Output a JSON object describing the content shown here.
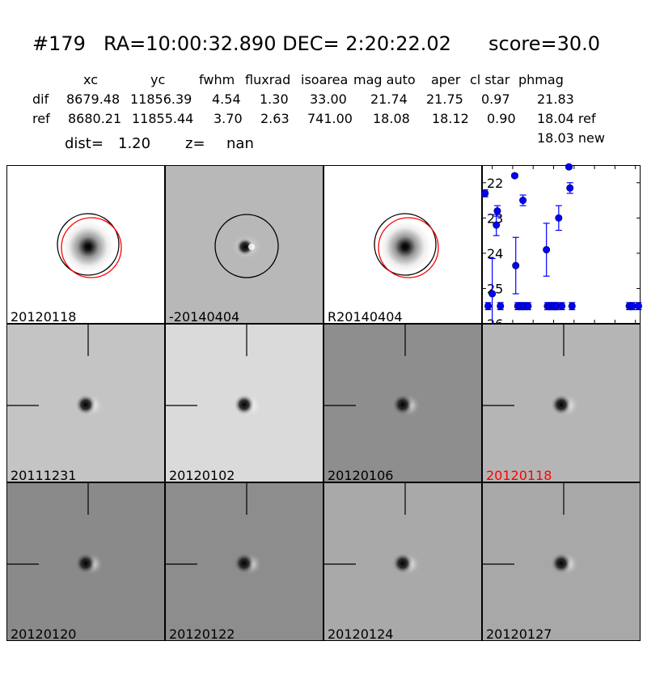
{
  "header": {
    "id": "#179",
    "coords": "RA=10:00:32.890 DEC= 2:20:22.02",
    "score": "score=30.0"
  },
  "table": {
    "columns": [
      "xc",
      "yc",
      "fwhm",
      "fluxrad",
      "isoarea",
      "mag auto",
      "aper",
      "cl star",
      "phmag"
    ],
    "rows": [
      {
        "label": "dif",
        "values": [
          "8679.48",
          "11856.39",
          "4.54",
          "1.30",
          "33.00",
          "21.74",
          "21.75",
          "0.97",
          "21.83"
        ]
      },
      {
        "label": "ref",
        "values": [
          "8680.21",
          "11855.44",
          "3.70",
          "2.63",
          "741.00",
          "18.08",
          "18.12",
          "0.90",
          "18.04 ref"
        ]
      }
    ],
    "extra_phmag": "18.03 new",
    "dist_label": "dist=",
    "dist_value": "1.20",
    "z_label": "z=",
    "z_value": "nan"
  },
  "panels": {
    "top": [
      {
        "label": "20120118",
        "bg": "#ffffff"
      },
      {
        "label": "-20140404",
        "bg": "#b8b8b8"
      },
      {
        "label": "R20140404",
        "bg": "#ffffff"
      }
    ],
    "grid": [
      {
        "label": "20111231",
        "bg": "#c4c4c4",
        "highlight": false
      },
      {
        "label": "20120102",
        "bg": "#dadada",
        "highlight": false
      },
      {
        "label": "20120106",
        "bg": "#8e8e8e",
        "highlight": false
      },
      {
        "label": "20120118",
        "bg": "#b5b5b5",
        "highlight": true
      },
      {
        "label": "20120120",
        "bg": "#8a8a8a",
        "highlight": false
      },
      {
        "label": "20120122",
        "bg": "#8d8d8d",
        "highlight": false
      },
      {
        "label": "20120124",
        "bg": "#a9a9a9",
        "highlight": false
      },
      {
        "label": "20120127",
        "bg": "#a8a8a8",
        "highlight": false
      }
    ],
    "highlight_color": "#ff0000"
  },
  "chart_data": {
    "type": "scatter",
    "xlim": [
      -30,
      125
    ],
    "ylim": [
      26,
      21.5
    ],
    "y_inverted": true,
    "xticks": [
      -20,
      0,
      20,
      40,
      60,
      80,
      100,
      120
    ],
    "yticks": [
      22,
      23,
      24,
      25,
      26
    ],
    "marker_color": "#0000ff",
    "points": [
      {
        "x": -27,
        "y": 22.3,
        "err": 0.1
      },
      {
        "x": -24,
        "y": 25.5,
        "err": 0.1
      },
      {
        "x": -20,
        "y": 25.15,
        "err": 1.0
      },
      {
        "x": -16,
        "y": 23.2,
        "err": 0.3
      },
      {
        "x": -15,
        "y": 22.8,
        "err": 0.15
      },
      {
        "x": -12,
        "y": 25.5,
        "err": 0.1
      },
      {
        "x": 2,
        "y": 21.8,
        "err": 0.05
      },
      {
        "x": 3,
        "y": 24.35,
        "err": 0.8
      },
      {
        "x": 5,
        "y": 25.5,
        "err": 0.1
      },
      {
        "x": 8,
        "y": 25.5,
        "err": 0.1
      },
      {
        "x": 10,
        "y": 22.5,
        "err": 0.15
      },
      {
        "x": 11,
        "y": 25.5,
        "err": 0.1
      },
      {
        "x": 15,
        "y": 25.5,
        "err": 0.1
      },
      {
        "x": 33,
        "y": 23.9,
        "err": 0.75
      },
      {
        "x": 34,
        "y": 25.5,
        "err": 0.1
      },
      {
        "x": 36,
        "y": 25.5,
        "err": 0.1
      },
      {
        "x": 39,
        "y": 25.5,
        "err": 0.1
      },
      {
        "x": 41,
        "y": 25.5,
        "err": 0.1
      },
      {
        "x": 43,
        "y": 25.5,
        "err": 0.1
      },
      {
        "x": 45,
        "y": 23.0,
        "err": 0.35
      },
      {
        "x": 48,
        "y": 25.5,
        "err": 0.1
      },
      {
        "x": 55,
        "y": 21.55,
        "err": 0.05
      },
      {
        "x": 56,
        "y": 22.15,
        "err": 0.15
      },
      {
        "x": 58,
        "y": 25.5,
        "err": 0.1
      },
      {
        "x": 114,
        "y": 25.5,
        "err": 0.1
      },
      {
        "x": 117,
        "y": 25.5,
        "err": 0.1
      },
      {
        "x": 123,
        "y": 25.5,
        "err": 0.1
      }
    ]
  }
}
